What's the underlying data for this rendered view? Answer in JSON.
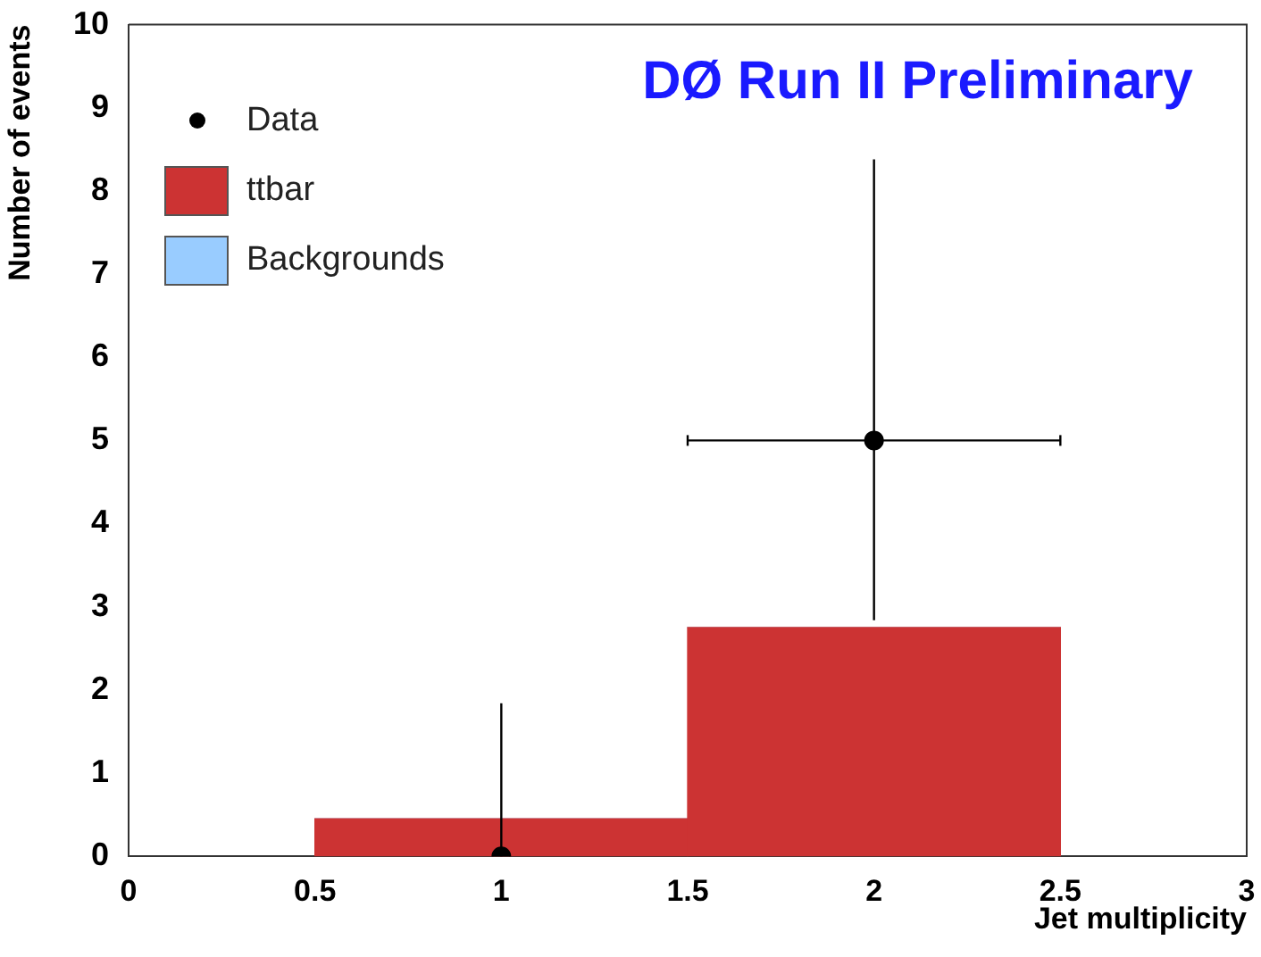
{
  "chart_data": {
    "type": "bar",
    "xlabel": "Jet multiplicity",
    "ylabel": "Number of events",
    "annotations": [
      "DØ Run II Preliminary"
    ],
    "x": [
      1,
      2
    ],
    "stacked": true,
    "series": [
      {
        "name": "ttbar",
        "color": "#cc3333",
        "values": [
          0.45,
          2.75
        ]
      },
      {
        "name": "Backgrounds",
        "color": "#99ccff",
        "values": [
          0,
          0
        ]
      },
      {
        "name": "Data",
        "type": "scatter",
        "color": "#000000",
        "x": [
          1,
          2
        ],
        "values": [
          0,
          5
        ],
        "errors": [
          [
            0,
            1.84
          ],
          [
            2.84,
            8.38
          ]
        ],
        "xerrors": [
          null,
          0.5
        ],
        "marker": "circle"
      }
    ],
    "xlim": [
      0,
      3
    ],
    "xticks": [
      0,
      0.5,
      1,
      1.5,
      2,
      2.5,
      3
    ],
    "ylim": [
      0,
      10
    ],
    "yticks": [
      0,
      1,
      2,
      3,
      4,
      5,
      6,
      7,
      8,
      9,
      10
    ],
    "grid": false,
    "legend": "top left"
  }
}
